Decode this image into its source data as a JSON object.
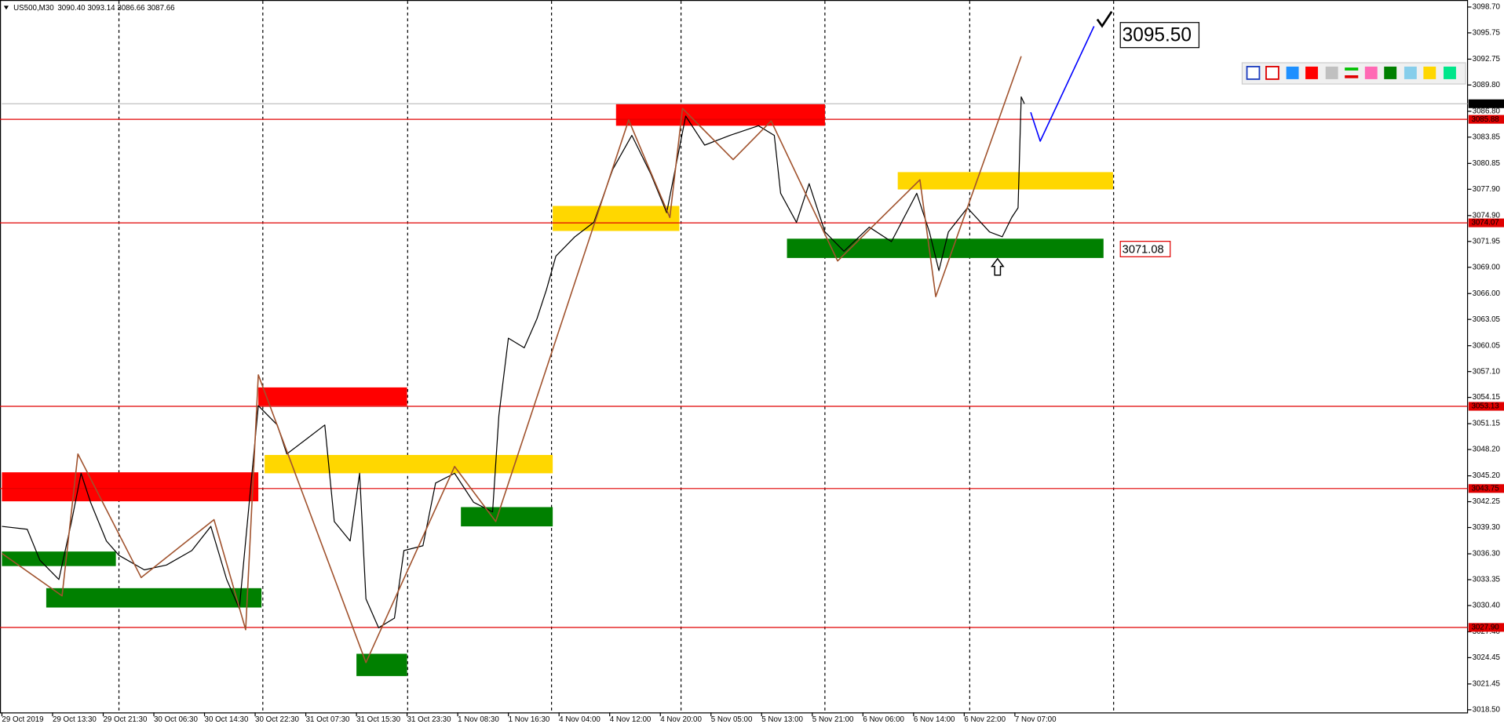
{
  "chart_data": {
    "type": "line",
    "title": "US500,M30",
    "subtitle": "3090.40 3093.14 3086.66 3087.66",
    "xlim": [
      0,
      463
    ],
    "xticks": [
      {
        "value": 0,
        "label": "29 Oct 2019"
      },
      {
        "value": 16,
        "label": "29 Oct 13:30"
      },
      {
        "value": 32,
        "label": "29 Oct 21:30"
      },
      {
        "value": 48,
        "label": "30 Oct 06:30"
      },
      {
        "value": 64,
        "label": "30 Oct 14:30"
      },
      {
        "value": 80,
        "label": "30 Oct 22:30"
      },
      {
        "value": 96,
        "label": "31 Oct 07:30"
      },
      {
        "value": 112,
        "label": "31 Oct 15:30"
      },
      {
        "value": 128,
        "label": "31 Oct 23:30"
      },
      {
        "value": 144,
        "label": "1 Nov 08:30"
      },
      {
        "value": 160,
        "label": "1 Nov 16:30"
      },
      {
        "value": 176,
        "label": "4 Nov 04:00"
      },
      {
        "value": 192,
        "label": "4 Nov 12:00"
      },
      {
        "value": 208,
        "label": "4 Nov 20:00"
      },
      {
        "value": 224,
        "label": "5 Nov 05:00"
      },
      {
        "value": 240,
        "label": "5 Nov 13:00"
      },
      {
        "value": 256,
        "label": "5 Nov 21:00"
      },
      {
        "value": 272,
        "label": "6 Nov 06:00"
      },
      {
        "value": 288,
        "label": "6 Nov 14:00"
      },
      {
        "value": 304,
        "label": "6 Nov 22:00"
      },
      {
        "value": 320,
        "label": "7 Nov 07:00"
      }
    ],
    "ylim": [
      3018.2,
      3099.5
    ],
    "yticks": [
      {
        "value": 3098.7,
        "label": "3098.70"
      },
      3095.75,
      3092.75,
      {
        "value": 3089.8,
        "label": "3089.80"
      },
      {
        "value": 3086.8,
        "label": "3086.80"
      },
      3083.85,
      3080.85,
      {
        "value": 3077.9,
        "label": "3077.90"
      },
      {
        "value": 3074.9,
        "label": "3074.90"
      },
      3071.95,
      {
        "value": 3069,
        "label": "3069.00"
      },
      {
        "value": 3066,
        "label": "3066.00"
      },
      3063.05,
      3060.05,
      {
        "value": 3057.1,
        "label": "3057.10"
      },
      3054.15,
      3051.15,
      {
        "value": 3048.2,
        "label": "3048.20"
      },
      {
        "value": 3045.2,
        "label": "3045.20"
      },
      3042.25,
      {
        "value": 3039.3,
        "label": "3039.30"
      },
      {
        "value": 3036.3,
        "label": "3036.30"
      },
      3033.35,
      {
        "value": 3030.4,
        "label": "3030.40"
      },
      {
        "value": 3027.4,
        "label": "3027.40"
      },
      3024.45,
      3021.45,
      {
        "value": 3018.5,
        "label": "3018.50"
      }
    ],
    "zones": [
      {
        "color": "#ff0000",
        "x": [
          0,
          81
        ],
        "y": [
          3042.29,
          3045.6
        ]
      },
      {
        "color": "#008000",
        "x": [
          0,
          36
        ],
        "y": [
          3034.9,
          3036.56
        ]
      },
      {
        "color": "#008000",
        "x": [
          14,
          82
        ],
        "y": [
          3030.17,
          3032.38
        ]
      },
      {
        "color": "#ff0000",
        "x": [
          81,
          128
        ],
        "y": [
          3053.2,
          3055.29
        ]
      },
      {
        "color": "#ffd700",
        "x": [
          83,
          174
        ],
        "y": [
          3045.49,
          3047.58
        ]
      },
      {
        "color": "#008000",
        "x": [
          112,
          128
        ],
        "y": [
          3022.35,
          3024.89
        ]
      },
      {
        "color": "#008000",
        "x": [
          145,
          174
        ],
        "y": [
          3039.43,
          3041.63
        ]
      },
      {
        "color": "#ffd700",
        "x": [
          174,
          214
        ],
        "y": [
          3073.14,
          3076.0
        ]
      },
      {
        "color": "#ff0000",
        "x": [
          194,
          260
        ],
        "y": [
          3085.15,
          3087.68
        ]
      },
      {
        "color": "#ffd700",
        "x": [
          283,
          351
        ],
        "y": [
          3077.88,
          3079.86
        ]
      },
      {
        "color": "#008000",
        "x": [
          248,
          348
        ],
        "y": [
          3070.06,
          3072.26
        ]
      }
    ],
    "levels": {
      "color": "#e00000",
      "values": [
        3085.88,
        3074.07,
        3053.13,
        3043.75,
        {
          "value": 3027.9,
          "label": "3027.90"
        }
      ]
    },
    "current_price": {
      "value": 3087.66,
      "label": "3087.66"
    },
    "series": [
      {
        "color": "#000000",
        "x": [
          0,
          8,
          12,
          18,
          22,
          25,
          28,
          33,
          37,
          45,
          52,
          60,
          66,
          71,
          75,
          79,
          81,
          87,
          90,
          96,
          102,
          105,
          110,
          113,
          115,
          119,
          124,
          127,
          133,
          137,
          143,
          149,
          155,
          157,
          160,
          165,
          169,
          172,
          175,
          181,
          187,
          193,
          199,
          205,
          210,
          216,
          222,
          230,
          239,
          244,
          246,
          251,
          255,
          260,
          266,
          274,
          281,
          289,
          293,
          296,
          299,
          305,
          312,
          316,
          319,
          321,
          322,
          323
        ],
        "values": [
          3039.43,
          3039.1,
          3035.57,
          3033.37,
          3039.98,
          3045.49,
          3042.18,
          3037.77,
          3036.12,
          3034.47,
          3035.02,
          3036.67,
          3039.43,
          3033.37,
          3030.06,
          3045.49,
          3053.2,
          3051.0,
          3047.69,
          3049.34,
          3051.0,
          3039.98,
          3037.77,
          3045.49,
          3031.16,
          3027.86,
          3028.96,
          3036.67,
          3037.22,
          3044.38,
          3045.49,
          3042.18,
          3041.08,
          3052.1,
          3060.91,
          3059.81,
          3063.11,
          3066.42,
          3070.27,
          3072.48,
          3074.13,
          3080.19,
          3084.05,
          3079.64,
          3075.23,
          3086.25,
          3082.94,
          3084.05,
          3085.15,
          3084.05,
          3077.44,
          3074.13,
          3078.54,
          3073.03,
          3070.83,
          3073.58,
          3071.93,
          3077.44,
          3073.03,
          3068.62,
          3073.03,
          3075.78,
          3073.03,
          3072.48,
          3074.68,
          3075.78,
          3088.45,
          3087.66
        ]
      },
      {
        "color": "#a0522d",
        "x": [
          0,
          19,
          24,
          44,
          67,
          77,
          81,
          115,
          143,
          156,
          198,
          211,
          215,
          231,
          243,
          264,
          290,
          295,
          322
        ],
        "values": [
          3036.34,
          3031.5,
          3047.69,
          3033.59,
          3040.2,
          3027.64,
          3056.72,
          3023.89,
          3046.26,
          3039.98,
          3085.81,
          3074.68,
          3087.13,
          3081.29,
          3085.7,
          3069.72,
          3078.98,
          3065.65,
          3093.08
        ]
      },
      {
        "color": "#0000ff",
        "x": [
          325,
          328,
          345
        ],
        "values": [
          3086.69,
          3083.39,
          3096.5
        ]
      }
    ],
    "annotations": [
      {
        "value": 3071.08,
        "label": "3071.08",
        "color": "#e00000"
      },
      {
        "value": 3095.5,
        "label": "3095.50",
        "color": "#000000"
      }
    ]
  }
}
